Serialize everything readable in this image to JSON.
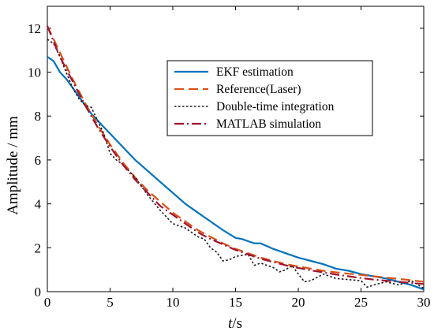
{
  "chart_data": {
    "type": "line",
    "xlabel_italic": "t",
    "xlabel_unit": "/s",
    "ylabel": "Amplitude / mm",
    "xlim": [
      0,
      30
    ],
    "ylim": [
      0,
      13
    ],
    "xticks": [
      0,
      5,
      10,
      15,
      20,
      25,
      30
    ],
    "yticks": [
      0,
      2,
      4,
      6,
      8,
      10,
      12
    ],
    "grid": false,
    "legend_position": "top-right",
    "series": [
      {
        "name": "EKF estimation",
        "color": "#0072BD",
        "style": "solid",
        "x": [
          0,
          0.5,
          1,
          1.5,
          2,
          2.5,
          3,
          3.5,
          4,
          4.5,
          5,
          6,
          7,
          8,
          9,
          10,
          11,
          12,
          13,
          14,
          15,
          15.5,
          16,
          16.5,
          17,
          18,
          19,
          20,
          21,
          22,
          23,
          24,
          25,
          26,
          27,
          28,
          29,
          30
        ],
        "y": [
          10.7,
          10.5,
          10.0,
          9.7,
          9.3,
          8.9,
          8.5,
          8.1,
          7.8,
          7.5,
          7.2,
          6.6,
          6.0,
          5.5,
          5.0,
          4.5,
          4.0,
          3.6,
          3.2,
          2.8,
          2.45,
          2.4,
          2.3,
          2.2,
          2.2,
          1.95,
          1.75,
          1.55,
          1.4,
          1.25,
          1.05,
          0.95,
          0.8,
          0.7,
          0.6,
          0.45,
          0.3,
          0.1
        ]
      },
      {
        "name": "Reference(Laser)",
        "color": "#D95319",
        "style": "dashed",
        "x": [
          0,
          1,
          2,
          3,
          4,
          5,
          6,
          7,
          8,
          9,
          10,
          11,
          12,
          13,
          14,
          15,
          16,
          17,
          18,
          19,
          20,
          21,
          22,
          23,
          24,
          25,
          26,
          27,
          28,
          29,
          30
        ],
        "y": [
          12.1,
          10.9,
          9.7,
          8.6,
          7.6,
          6.7,
          5.9,
          5.2,
          4.6,
          4.1,
          3.6,
          3.2,
          2.8,
          2.5,
          2.2,
          1.95,
          1.75,
          1.55,
          1.4,
          1.25,
          1.15,
          1.05,
          0.95,
          0.88,
          0.82,
          0.76,
          0.7,
          0.64,
          0.58,
          0.52,
          0.45
        ]
      },
      {
        "name": "Double-time integration",
        "color": "#1a1a1a",
        "style": "dotted",
        "x": [
          0,
          0.5,
          1,
          1.5,
          2,
          2.5,
          3,
          3.5,
          4,
          4.5,
          5,
          5.5,
          6,
          7,
          8,
          9,
          10,
          11,
          12,
          12.5,
          13,
          13.5,
          14,
          14.5,
          15,
          16,
          16.5,
          17,
          18,
          18.5,
          19,
          19.5,
          20,
          20.5,
          21,
          22,
          23,
          24,
          25,
          25.5,
          26,
          27,
          28,
          29,
          30
        ],
        "y": [
          11.5,
          11.3,
          10.7,
          10.0,
          9.3,
          8.8,
          8.5,
          8.4,
          7.8,
          7.2,
          6.3,
          6.0,
          5.8,
          5.2,
          4.4,
          3.7,
          3.1,
          2.9,
          2.5,
          2.4,
          2.0,
          1.8,
          1.4,
          1.45,
          1.6,
          1.7,
          1.2,
          1.3,
          1.1,
          0.9,
          1.0,
          1.2,
          0.8,
          0.45,
          0.5,
          0.8,
          0.6,
          0.55,
          0.5,
          0.2,
          0.3,
          0.45,
          0.3,
          0.5,
          0.15
        ]
      },
      {
        "name": "MATLAB simulation",
        "color": "#A2142F",
        "style": "dashdot",
        "x": [
          0,
          1,
          2,
          3,
          4,
          5,
          6,
          7,
          8,
          9,
          10,
          11,
          12,
          13,
          14,
          15,
          16,
          17,
          18,
          19,
          20,
          21,
          22,
          23,
          24,
          25,
          26,
          27,
          28,
          29,
          30
        ],
        "y": [
          12.1,
          10.7,
          9.6,
          8.5,
          7.5,
          6.6,
          5.8,
          5.1,
          4.5,
          3.9,
          3.5,
          3.1,
          2.7,
          2.4,
          2.15,
          1.9,
          1.7,
          1.5,
          1.35,
          1.2,
          1.08,
          0.97,
          0.88,
          0.78,
          0.7,
          0.62,
          0.55,
          0.5,
          0.45,
          0.4,
          0.35
        ]
      }
    ]
  }
}
